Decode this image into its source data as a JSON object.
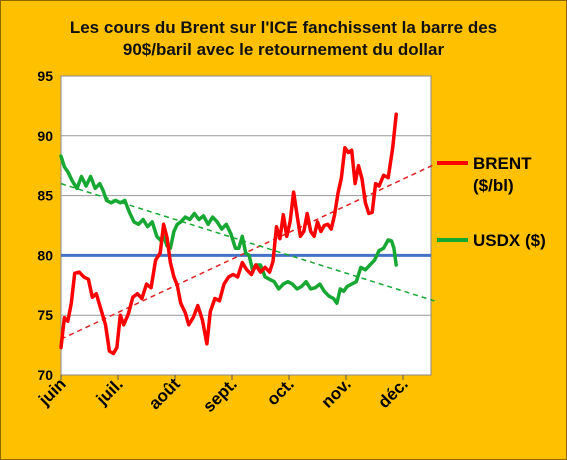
{
  "chart_data": {
    "type": "line",
    "title_line1": "Les cours du Brent sur l'ICE  fanchissent la barre des",
    "title_line2": "90$/baril avec le retournement du dollar",
    "ylim": [
      70,
      95
    ],
    "y_ticks": [
      70,
      75,
      80,
      85,
      90,
      95
    ],
    "x_tick_labels": [
      "juin",
      "juil.",
      "août",
      "sept.",
      "oct.",
      "nov.",
      "déc."
    ],
    "grid": true,
    "reference_line": {
      "value": 80,
      "color": "#4472c4"
    },
    "legend_position": "right",
    "series": [
      {
        "name": "BRENT",
        "name_unit": "($/bl)",
        "color": "#ff0000",
        "trend_color": "#e02020",
        "trend": [
          [
            0,
            73.0
          ],
          [
            6.55,
            87.6
          ]
        ],
        "points": [
          [
            0.0,
            72.3
          ],
          [
            0.06,
            74.8
          ],
          [
            0.12,
            74.5
          ],
          [
            0.18,
            76.0
          ],
          [
            0.24,
            78.5
          ],
          [
            0.32,
            78.6
          ],
          [
            0.4,
            78.2
          ],
          [
            0.48,
            78.0
          ],
          [
            0.55,
            76.5
          ],
          [
            0.62,
            76.8
          ],
          [
            0.7,
            75.5
          ],
          [
            0.78,
            74.2
          ],
          [
            0.85,
            72.0
          ],
          [
            0.92,
            71.8
          ],
          [
            0.98,
            72.3
          ],
          [
            1.04,
            75.0
          ],
          [
            1.1,
            74.2
          ],
          [
            1.18,
            75.1
          ],
          [
            1.26,
            76.5
          ],
          [
            1.34,
            76.8
          ],
          [
            1.42,
            76.4
          ],
          [
            1.5,
            77.6
          ],
          [
            1.58,
            77.3
          ],
          [
            1.66,
            79.6
          ],
          [
            1.74,
            80.2
          ],
          [
            1.8,
            82.6
          ],
          [
            1.86,
            81.5
          ],
          [
            1.92,
            79.4
          ],
          [
            1.98,
            78.2
          ],
          [
            2.04,
            77.5
          ],
          [
            2.1,
            76.0
          ],
          [
            2.18,
            75.2
          ],
          [
            2.24,
            74.2
          ],
          [
            2.32,
            74.8
          ],
          [
            2.4,
            75.8
          ],
          [
            2.48,
            74.6
          ],
          [
            2.56,
            72.6
          ],
          [
            2.62,
            75.3
          ],
          [
            2.7,
            76.4
          ],
          [
            2.78,
            76.2
          ],
          [
            2.86,
            77.6
          ],
          [
            2.94,
            78.2
          ],
          [
            3.02,
            78.4
          ],
          [
            3.1,
            78.2
          ],
          [
            3.18,
            79.4
          ],
          [
            3.26,
            78.8
          ],
          [
            3.34,
            78.4
          ],
          [
            3.42,
            79.2
          ],
          [
            3.5,
            78.6
          ],
          [
            3.58,
            79.0
          ],
          [
            3.66,
            78.6
          ],
          [
            3.72,
            79.5
          ],
          [
            3.78,
            82.4
          ],
          [
            3.84,
            81.4
          ],
          [
            3.9,
            83.4
          ],
          [
            3.96,
            81.6
          ],
          [
            4.02,
            82.8
          ],
          [
            4.08,
            85.3
          ],
          [
            4.14,
            83.4
          ],
          [
            4.2,
            81.6
          ],
          [
            4.26,
            82.0
          ],
          [
            4.32,
            83.5
          ],
          [
            4.38,
            82.0
          ],
          [
            4.44,
            81.6
          ],
          [
            4.5,
            82.8
          ],
          [
            4.56,
            82.0
          ],
          [
            4.62,
            82.5
          ],
          [
            4.68,
            82.6
          ],
          [
            4.74,
            82.2
          ],
          [
            4.8,
            83.4
          ],
          [
            4.86,
            85.2
          ],
          [
            4.92,
            86.5
          ],
          [
            4.98,
            89.0
          ],
          [
            5.04,
            88.6
          ],
          [
            5.1,
            88.8
          ],
          [
            5.16,
            86.0
          ],
          [
            5.22,
            87.5
          ],
          [
            5.28,
            86.4
          ],
          [
            5.34,
            84.4
          ],
          [
            5.4,
            83.5
          ],
          [
            5.46,
            83.6
          ],
          [
            5.52,
            86.0
          ],
          [
            5.58,
            85.8
          ],
          [
            5.66,
            86.7
          ],
          [
            5.74,
            86.5
          ],
          [
            5.82,
            89.0
          ],
          [
            5.88,
            91.8
          ]
        ]
      },
      {
        "name": "USDX ($)",
        "color": "#16a832",
        "trend_color": "#16a832",
        "trend": [
          [
            0,
            86.0
          ],
          [
            6.55,
            76.2
          ]
        ],
        "points": [
          [
            0.0,
            88.3
          ],
          [
            0.06,
            87.4
          ],
          [
            0.12,
            87.0
          ],
          [
            0.2,
            86.2
          ],
          [
            0.28,
            85.6
          ],
          [
            0.36,
            86.6
          ],
          [
            0.44,
            85.8
          ],
          [
            0.52,
            86.6
          ],
          [
            0.6,
            85.6
          ],
          [
            0.68,
            86.0
          ],
          [
            0.74,
            85.4
          ],
          [
            0.8,
            84.6
          ],
          [
            0.88,
            84.4
          ],
          [
            0.96,
            84.6
          ],
          [
            1.04,
            84.4
          ],
          [
            1.12,
            84.6
          ],
          [
            1.2,
            83.6
          ],
          [
            1.28,
            82.8
          ],
          [
            1.36,
            82.6
          ],
          [
            1.44,
            83.0
          ],
          [
            1.52,
            82.4
          ],
          [
            1.6,
            82.8
          ],
          [
            1.68,
            81.6
          ],
          [
            1.74,
            81.3
          ],
          [
            1.8,
            81.6
          ],
          [
            1.86,
            80.8
          ],
          [
            1.92,
            80.6
          ],
          [
            1.98,
            82.0
          ],
          [
            2.04,
            82.6
          ],
          [
            2.1,
            82.8
          ],
          [
            2.18,
            83.2
          ],
          [
            2.26,
            83.0
          ],
          [
            2.34,
            83.5
          ],
          [
            2.42,
            83.0
          ],
          [
            2.5,
            83.3
          ],
          [
            2.58,
            82.6
          ],
          [
            2.66,
            83.2
          ],
          [
            2.74,
            82.8
          ],
          [
            2.82,
            82.2
          ],
          [
            2.9,
            82.6
          ],
          [
            2.98,
            81.8
          ],
          [
            3.06,
            80.6
          ],
          [
            3.12,
            80.6
          ],
          [
            3.18,
            81.6
          ],
          [
            3.24,
            80.2
          ],
          [
            3.3,
            80.0
          ],
          [
            3.36,
            78.8
          ],
          [
            3.42,
            79.2
          ],
          [
            3.5,
            79.2
          ],
          [
            3.58,
            78.2
          ],
          [
            3.66,
            78.0
          ],
          [
            3.74,
            77.8
          ],
          [
            3.82,
            77.2
          ],
          [
            3.9,
            77.6
          ],
          [
            3.98,
            77.8
          ],
          [
            4.06,
            77.6
          ],
          [
            4.14,
            77.2
          ],
          [
            4.22,
            77.4
          ],
          [
            4.3,
            77.8
          ],
          [
            4.38,
            77.2
          ],
          [
            4.46,
            77.3
          ],
          [
            4.54,
            77.6
          ],
          [
            4.62,
            77.0
          ],
          [
            4.7,
            76.6
          ],
          [
            4.78,
            76.4
          ],
          [
            4.84,
            76.0
          ],
          [
            4.9,
            77.2
          ],
          [
            4.96,
            77.0
          ],
          [
            5.02,
            77.4
          ],
          [
            5.1,
            77.6
          ],
          [
            5.18,
            77.8
          ],
          [
            5.26,
            79.0
          ],
          [
            5.34,
            78.8
          ],
          [
            5.42,
            79.2
          ],
          [
            5.5,
            79.6
          ],
          [
            5.58,
            80.4
          ],
          [
            5.66,
            80.6
          ],
          [
            5.74,
            81.3
          ],
          [
            5.8,
            81.2
          ],
          [
            5.84,
            80.6
          ],
          [
            5.88,
            79.2
          ]
        ]
      }
    ]
  }
}
